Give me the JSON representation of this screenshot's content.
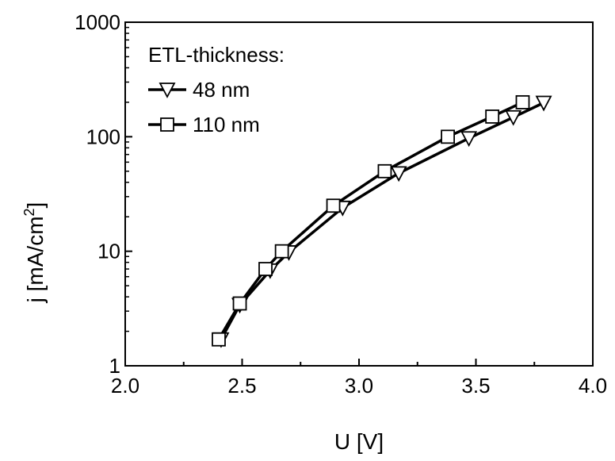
{
  "chart_data": {
    "type": "line",
    "xlabel": "U [V]",
    "ylabel_main": "j [mA/cm",
    "ylabel_sup": "2",
    "ylabel_end": "]",
    "xlim": [
      2.0,
      4.0
    ],
    "ylim": [
      1,
      1000
    ],
    "yscale": "log",
    "x_ticks": [
      2.0,
      2.5,
      3.0,
      3.5,
      4.0
    ],
    "x_tick_labels": [
      "2.0",
      "2.5",
      "3.0",
      "3.5",
      "4.0"
    ],
    "y_ticks": [
      1,
      10,
      100,
      1000
    ],
    "y_tick_labels": [
      "1",
      "10",
      "100",
      "1000"
    ],
    "grid": false,
    "legend_title": "ETL-thickness:",
    "legend_position": "top-left",
    "series": [
      {
        "name": "48 nm",
        "marker": "triangle-down",
        "x": [
          2.41,
          2.49,
          2.62,
          2.7,
          2.93,
          3.17,
          3.47,
          3.66,
          3.79
        ],
        "y": [
          1.7,
          3.4,
          6.8,
          9.8,
          24,
          48,
          97,
          148,
          198
        ]
      },
      {
        "name": "110 nm",
        "marker": "square",
        "x": [
          2.4,
          2.49,
          2.6,
          2.67,
          2.89,
          3.11,
          3.38,
          3.57,
          3.7
        ],
        "y": [
          1.7,
          3.5,
          7.0,
          10,
          25,
          50,
          100,
          150,
          200
        ]
      }
    ]
  }
}
